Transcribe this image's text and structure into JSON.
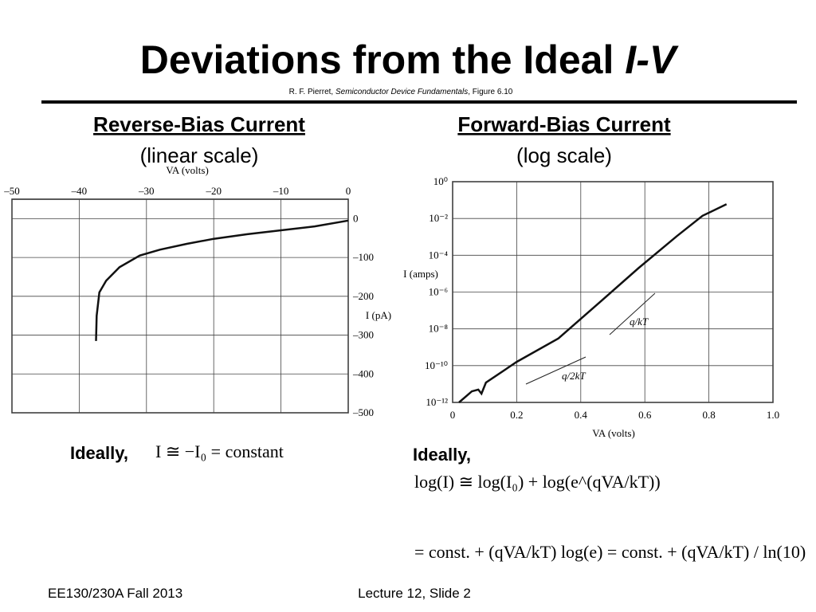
{
  "title": [
    "Deviations from the Ideal",
    "I-V"
  ],
  "citation": [
    "R. F. Pierret, ",
    "Semiconductor Device Fundamentals",
    ", Figure 6.10"
  ],
  "left": {
    "heading": "Reverse-Bias Current",
    "subheading": "(linear scale)",
    "ideally": "Ideally,",
    "equation": "I ≅ −I₀ = constant"
  },
  "right": {
    "heading": "Forward-Bias Current",
    "subheading": "(log scale)",
    "ideally": "Ideally,",
    "equations": [
      "log(I) ≅ log(I₀) + log(e^(qVA/kT))",
      "= const. + (qVA/kT) log(e) = const. + (qVA/kT) / ln(10)"
    ]
  },
  "footer": {
    "course": "EE130/230A Fall 2013",
    "slide": "Lecture 12, Slide 2"
  },
  "chart_data": [
    {
      "type": "line",
      "x_label": "VA (volts)",
      "y_label": "I (pA)",
      "x": [
        -37.5,
        -37.4,
        -37,
        -36,
        -34,
        -31,
        -28,
        -24,
        -20,
        -15,
        -10,
        -5,
        0
      ],
      "values": [
        -315,
        -250,
        -190,
        -160,
        -125,
        -95,
        -80,
        -65,
        -52,
        -40,
        -30,
        -20,
        -5
      ],
      "color": "#111111",
      "xlim": [
        -50,
        0
      ],
      "ylim": [
        -500,
        50
      ],
      "xticks": [
        {
          "value": -50,
          "label": "–50"
        },
        {
          "value": -40,
          "label": "–40"
        },
        {
          "value": -30,
          "label": "–30"
        },
        {
          "value": -20,
          "label": "–20"
        },
        {
          "value": -10,
          "label": "–10"
        },
        0
      ],
      "yticks": [
        0,
        {
          "value": -100,
          "label": "–100"
        },
        {
          "value": -200,
          "label": "–200"
        },
        {
          "value": -300,
          "label": "–300"
        },
        {
          "value": -400,
          "label": "–400"
        },
        {
          "value": -500,
          "label": "–500"
        }
      ],
      "grid": true
    },
    {
      "type": "line",
      "x_label": "VA (volts)",
      "y_label": "I (amps)",
      "log_y": true,
      "x": [
        0.02,
        0.06,
        0.08,
        0.09,
        0.104,
        0.2,
        0.33,
        0.45,
        0.58,
        0.7,
        0.78,
        0.855
      ],
      "values": [
        1e-12,
        4e-12,
        5e-12,
        3e-12,
        1.2e-11,
        1.6e-10,
        3e-09,
        2e-07,
        2e-05,
        0.0011,
        0.014,
        0.06
      ],
      "color": "#111111",
      "xlim": [
        0,
        1
      ],
      "ylim": [
        1e-12,
        1
      ],
      "xticks": [
        0,
        0.2,
        0.4,
        0.6,
        0.8,
        {
          "value": 1,
          "label": "1.0"
        }
      ],
      "yticks": [
        {
          "value": 1,
          "label": "10⁰"
        },
        {
          "value": 0.01,
          "label": "10⁻²"
        },
        {
          "value": 0.0001,
          "label": "10⁻⁴"
        },
        {
          "value": 1e-06,
          "label": "10⁻⁶"
        },
        {
          "value": 1e-08,
          "label": "10⁻⁸"
        },
        {
          "value": 1e-10,
          "label": "10⁻¹⁰"
        },
        {
          "value": 1e-12,
          "label": "10⁻¹²"
        }
      ],
      "annotations": [
        "q/kT",
        "q/2kT"
      ],
      "grid": true
    }
  ]
}
